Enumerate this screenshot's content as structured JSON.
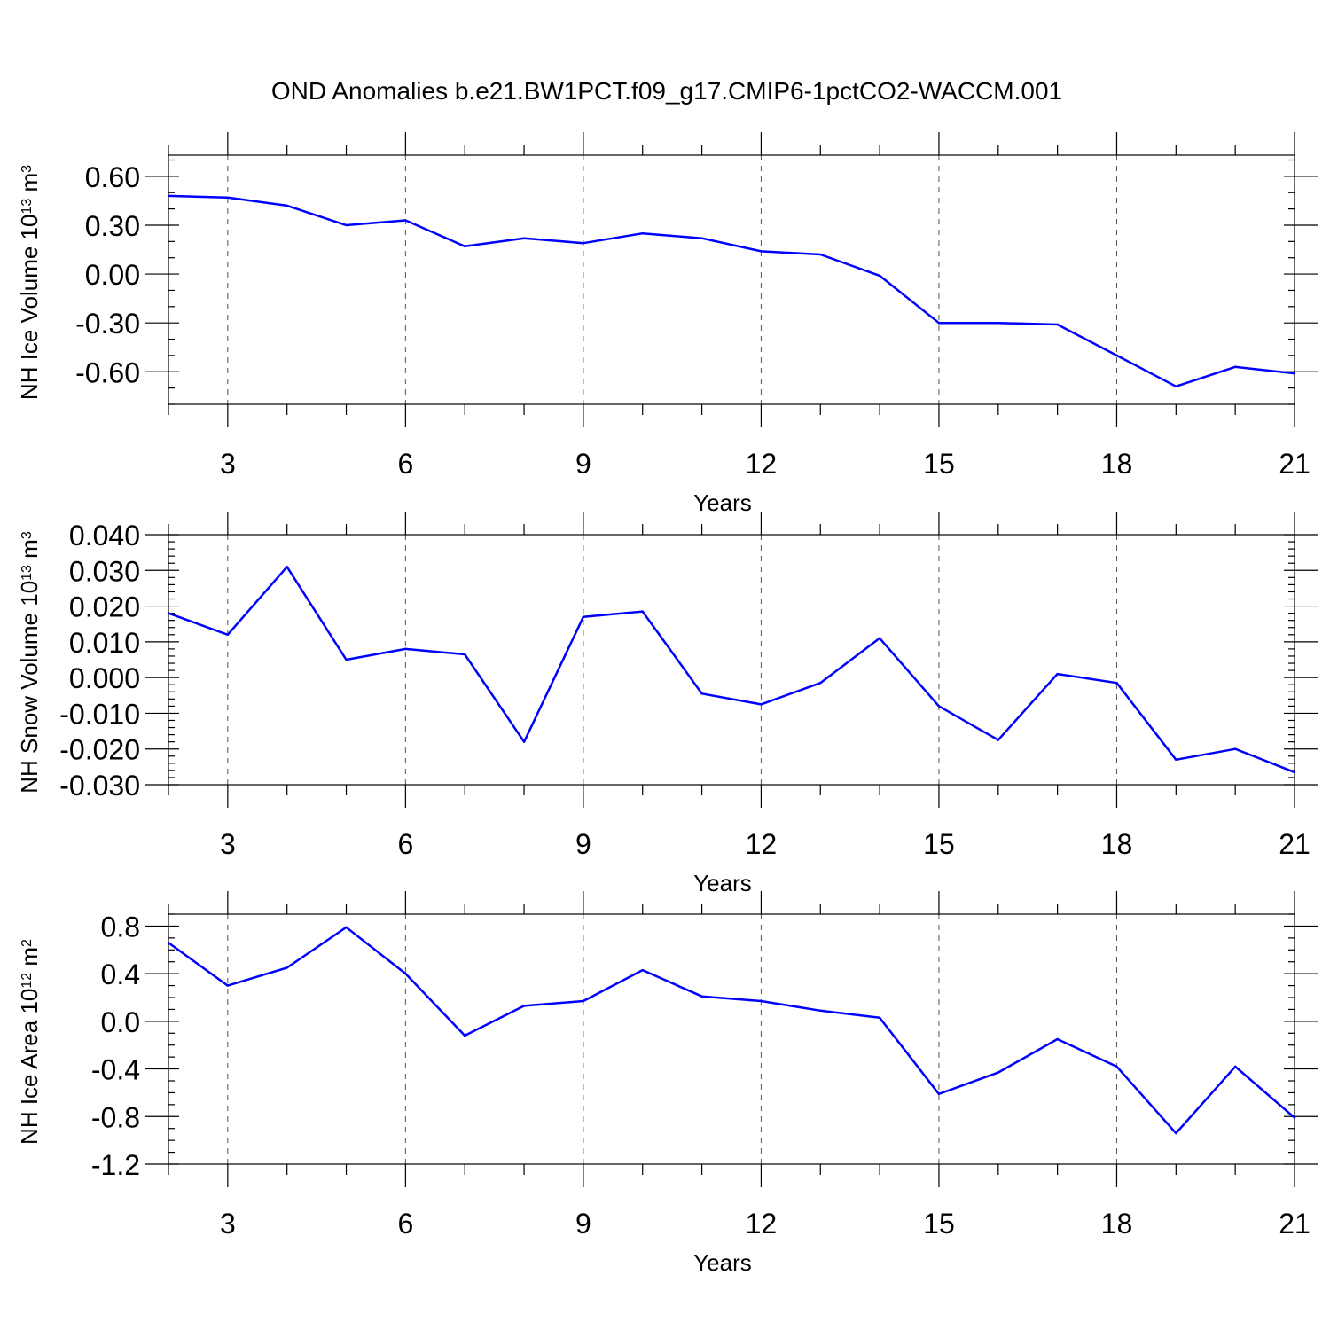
{
  "title": "OND Anomalies b.e21.BW1PCT.f09_g17.CMIP6-1pctCO2-WACCM.001",
  "chart_data": [
    {
      "type": "line",
      "ylabel": "NH Ice Volume 10",
      "ylabel_exp": "13",
      "ylabel_unit": " m",
      "ylabel_unit_exp": "3",
      "xlabel": "Years",
      "xlim": [
        2,
        21
      ],
      "ylim": [
        -0.8,
        0.73
      ],
      "xticks": [
        3,
        6,
        9,
        12,
        15,
        18,
        21
      ],
      "xtick_labels": [
        "3",
        "6",
        "9",
        "12",
        "15",
        "18",
        "21"
      ],
      "yticks": [
        0.6,
        0.3,
        0.0,
        -0.3,
        -0.6
      ],
      "ytick_labels": [
        "0.60",
        "0.30",
        "0.00",
        "-0.30",
        "-0.60"
      ],
      "yminor_step": 0.1,
      "grid_x": true,
      "x": [
        2,
        3,
        4,
        5,
        6,
        7,
        8,
        9,
        10,
        11,
        12,
        13,
        14,
        15,
        16,
        17,
        18,
        19,
        20,
        21
      ],
      "series": [
        {
          "values": [
            0.48,
            0.47,
            0.42,
            0.3,
            0.33,
            0.17,
            0.22,
            0.19,
            0.25,
            0.22,
            0.14,
            0.12,
            -0.01,
            -0.3,
            -0.3,
            -0.31,
            -0.5,
            -0.69,
            -0.57,
            -0.61
          ],
          "color": "#0000ff"
        }
      ]
    },
    {
      "type": "line",
      "ylabel": "NH Snow Volume 10",
      "ylabel_exp": "13",
      "ylabel_unit": " m",
      "ylabel_unit_exp": "3",
      "xlabel": "Years",
      "xlim": [
        2,
        21
      ],
      "ylim": [
        -0.03,
        0.04
      ],
      "xticks": [
        3,
        6,
        9,
        12,
        15,
        18,
        21
      ],
      "xtick_labels": [
        "3",
        "6",
        "9",
        "12",
        "15",
        "18",
        "21"
      ],
      "yticks": [
        0.04,
        0.03,
        0.02,
        0.01,
        0.0,
        -0.01,
        -0.02,
        -0.03
      ],
      "ytick_labels": [
        "0.040",
        "0.030",
        "0.020",
        "0.010",
        "0.000",
        "-0.010",
        "-0.020",
        "-0.030"
      ],
      "yminor_step": 0.002,
      "grid_x": true,
      "x": [
        2,
        3,
        4,
        5,
        6,
        7,
        8,
        9,
        10,
        11,
        12,
        13,
        14,
        15,
        16,
        17,
        18,
        19,
        20,
        21
      ],
      "series": [
        {
          "values": [
            0.018,
            0.012,
            0.031,
            0.005,
            0.008,
            0.0065,
            -0.018,
            0.017,
            0.0185,
            -0.0045,
            -0.0075,
            -0.0015,
            0.011,
            -0.008,
            -0.0175,
            0.001,
            -0.0015,
            -0.023,
            -0.02,
            -0.0265
          ],
          "color": "#0000ff"
        }
      ]
    },
    {
      "type": "line",
      "ylabel": "NH Ice Area 10",
      "ylabel_exp": "12",
      "ylabel_unit": " m",
      "ylabel_unit_exp": "2",
      "xlabel": "Years",
      "xlim": [
        2,
        21
      ],
      "ylim": [
        -1.2,
        0.9
      ],
      "xticks": [
        3,
        6,
        9,
        12,
        15,
        18,
        21
      ],
      "xtick_labels": [
        "3",
        "6",
        "9",
        "12",
        "15",
        "18",
        "21"
      ],
      "yticks": [
        0.8,
        0.4,
        0.0,
        -0.4,
        -0.8,
        -1.2
      ],
      "ytick_labels": [
        "0.8",
        "0.4",
        "0.0",
        "-0.4",
        "-0.8",
        "-1.2"
      ],
      "yminor_step": 0.1,
      "grid_x": true,
      "x": [
        2,
        3,
        4,
        5,
        6,
        7,
        8,
        9,
        10,
        11,
        12,
        13,
        14,
        15,
        16,
        17,
        18,
        19,
        20,
        21
      ],
      "series": [
        {
          "values": [
            0.66,
            0.3,
            0.45,
            0.79,
            0.4,
            -0.12,
            0.13,
            0.17,
            0.43,
            0.21,
            0.17,
            0.09,
            0.03,
            -0.61,
            -0.43,
            -0.15,
            -0.38,
            -0.94,
            -0.38,
            -0.81
          ],
          "color": "#0000ff"
        }
      ]
    }
  ]
}
